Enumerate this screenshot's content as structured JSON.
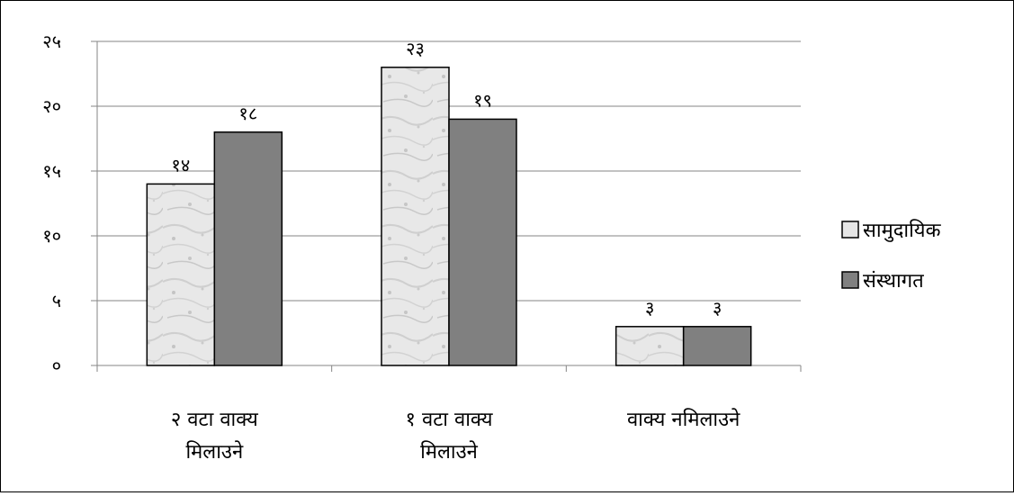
{
  "chart_data": {
    "type": "bar",
    "categories": [
      [
        "२ वटा वाक्य",
        "मिलाउने"
      ],
      [
        "१ वटा वाक्य",
        "मिलाउने"
      ],
      [
        "वाक्य नमिलाउने"
      ]
    ],
    "series": [
      {
        "name": "सामुदायिक",
        "values": [
          14,
          23,
          3
        ],
        "labels": [
          "१४",
          "२३",
          "३"
        ],
        "color": "#e6e6e6",
        "pattern": "marble"
      },
      {
        "name": "संस्थागत",
        "values": [
          18,
          19,
          3
        ],
        "labels": [
          "१८",
          "१९",
          "३"
        ],
        "color": "#808080",
        "pattern": "solid"
      }
    ],
    "ylim": [
      0,
      25
    ],
    "yticks": [
      0,
      5,
      10,
      15,
      20,
      25
    ],
    "ytick_labels": [
      "०",
      "५",
      "१०",
      "१५",
      "२०",
      "२५"
    ],
    "grid": true,
    "legend_position": "right"
  }
}
